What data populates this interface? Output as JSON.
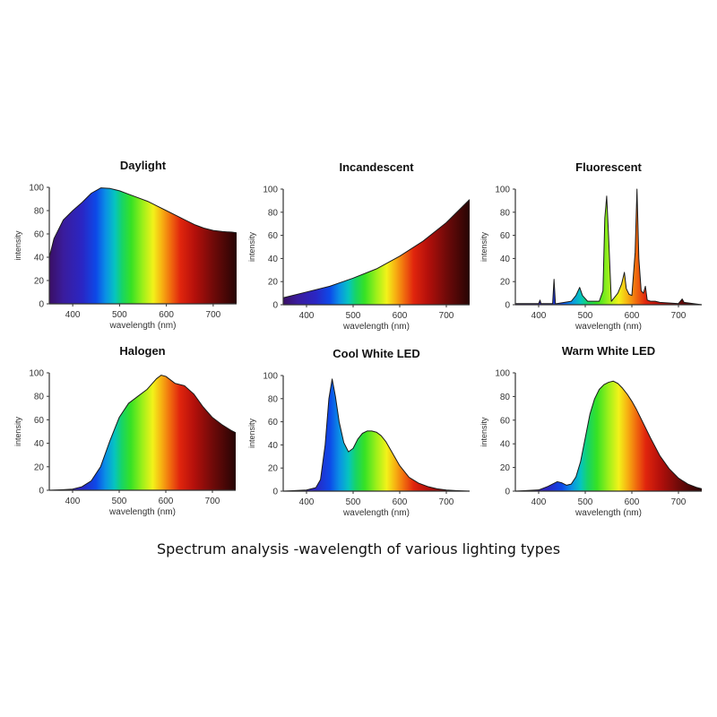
{
  "caption": "Spectrum analysis -wavelength of various lighting types",
  "chart_data": [
    {
      "type": "area",
      "title": "Daylight",
      "xlabel": "wavelength (nm)",
      "ylabel": "intensity",
      "xlim": [
        350,
        750
      ],
      "ylim": [
        0,
        100
      ],
      "xticks": [
        400,
        500,
        600,
        700
      ],
      "yticks": [
        0,
        20,
        40,
        60,
        80,
        100
      ],
      "x": [
        350,
        360,
        380,
        400,
        420,
        440,
        460,
        480,
        500,
        520,
        540,
        560,
        580,
        600,
        620,
        640,
        660,
        680,
        700,
        720,
        740,
        750
      ],
      "y": [
        40,
        56,
        72,
        80,
        87,
        95,
        99.5,
        99,
        97,
        94,
        91,
        88,
        84,
        80,
        76,
        72,
        68,
        65,
        63,
        62,
        61.5,
        61
      ]
    },
    {
      "type": "area",
      "title": "Incandescent",
      "xlabel": "wavelength (nm)",
      "ylabel": "intensity",
      "xlim": [
        350,
        750
      ],
      "ylim": [
        0,
        100
      ],
      "xticks": [
        400,
        500,
        600,
        700
      ],
      "yticks": [
        0,
        20,
        40,
        60,
        80,
        100
      ],
      "x": [
        350,
        400,
        450,
        500,
        550,
        600,
        650,
        700,
        750
      ],
      "y": [
        6,
        11,
        16,
        23,
        31,
        42,
        55,
        71,
        91
      ]
    },
    {
      "type": "area",
      "title": "Fluorescent",
      "xlabel": "wavelength (nm)",
      "ylabel": "intensity",
      "xlim": [
        350,
        750
      ],
      "ylim": [
        0,
        100
      ],
      "xticks": [
        400,
        500,
        600,
        700
      ],
      "yticks": [
        0,
        20,
        40,
        60,
        80,
        100
      ],
      "x": [
        350,
        400,
        403,
        405,
        408,
        430,
        433,
        436,
        439,
        470,
        480,
        488,
        494,
        505,
        530,
        538,
        542,
        546,
        550,
        556,
        570,
        578,
        584,
        588,
        594,
        600,
        607,
        611,
        615,
        620,
        625,
        629,
        633,
        640,
        650,
        660,
        700,
        708,
        712,
        750
      ],
      "y": [
        1,
        1,
        4,
        1,
        1,
        1,
        22,
        1,
        1,
        3,
        8,
        15,
        8,
        3,
        3,
        12,
        75,
        94,
        60,
        3,
        10,
        18,
        28,
        14,
        9,
        8,
        45,
        100,
        40,
        12,
        10,
        16,
        4,
        3,
        3,
        2,
        1,
        5,
        2,
        0
      ]
    },
    {
      "type": "area",
      "title": "Halogen",
      "xlabel": "wavelength (nm)",
      "ylabel": "intensity",
      "xlim": [
        350,
        750
      ],
      "ylim": [
        0,
        100
      ],
      "xticks": [
        400,
        500,
        600,
        700
      ],
      "yticks": [
        0,
        20,
        40,
        60,
        80,
        100
      ],
      "x": [
        350,
        380,
        400,
        420,
        440,
        460,
        480,
        500,
        520,
        540,
        560,
        580,
        590,
        600,
        620,
        640,
        660,
        680,
        700,
        720,
        740,
        750
      ],
      "y": [
        0,
        0.5,
        1,
        3,
        8,
        20,
        42,
        62,
        74,
        80,
        86,
        95,
        98,
        97,
        91,
        89,
        82,
        71,
        62,
        56,
        51,
        49
      ]
    },
    {
      "type": "area",
      "title": "Cool White LED",
      "xlabel": "wavelength (nm)",
      "ylabel": "intensity",
      "xlim": [
        350,
        750
      ],
      "ylim": [
        0,
        100
      ],
      "xticks": [
        400,
        500,
        600,
        700
      ],
      "yticks": [
        0,
        20,
        40,
        60,
        80,
        100
      ],
      "x": [
        350,
        400,
        420,
        430,
        440,
        448,
        455,
        462,
        470,
        480,
        490,
        500,
        510,
        520,
        530,
        540,
        550,
        560,
        570,
        580,
        600,
        620,
        640,
        660,
        680,
        700,
        720,
        750
      ],
      "y": [
        0,
        1,
        3,
        10,
        40,
        80,
        97,
        82,
        60,
        42,
        34,
        37,
        45,
        50,
        52,
        52,
        51,
        48,
        43,
        36,
        22,
        12,
        7,
        4,
        2,
        1,
        0.5,
        0
      ]
    },
    {
      "type": "area",
      "title": "Warm White LED",
      "xlabel": "wavelength (nm)",
      "ylabel": "intensity",
      "xlim": [
        350,
        750
      ],
      "ylim": [
        0,
        100
      ],
      "xticks": [
        400,
        500,
        600,
        700
      ],
      "yticks": [
        0,
        20,
        40,
        60,
        80,
        100
      ],
      "x": [
        350,
        400,
        420,
        440,
        450,
        460,
        470,
        480,
        490,
        500,
        510,
        520,
        530,
        540,
        550,
        560,
        570,
        580,
        590,
        600,
        610,
        620,
        640,
        660,
        680,
        700,
        720,
        740,
        750
      ],
      "y": [
        0,
        1,
        4,
        8,
        7,
        5,
        6,
        12,
        25,
        45,
        65,
        78,
        86,
        90,
        92,
        93,
        91,
        87,
        82,
        76,
        69,
        61,
        45,
        30,
        19,
        11,
        6,
        3,
        2
      ]
    }
  ]
}
